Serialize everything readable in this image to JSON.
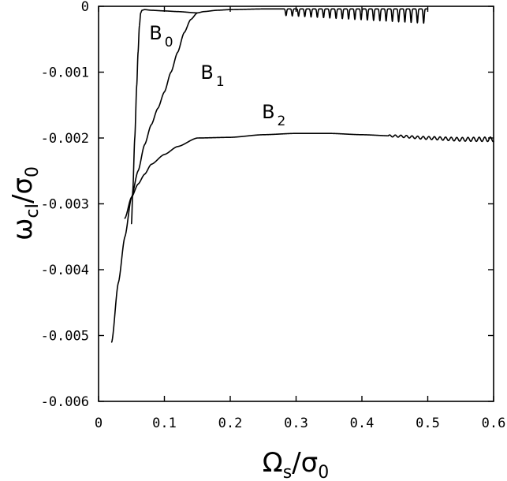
{
  "chart_data": {
    "type": "line",
    "xlabel": {
      "main": "Ω",
      "sub": "s",
      "over": "/σ",
      "over_sub": "0"
    },
    "ylabel": {
      "main": "ω",
      "sub": "cI",
      "over": "/σ",
      "over_sub": "0"
    },
    "xlim": [
      0,
      0.6
    ],
    "ylim": [
      -0.006,
      0
    ],
    "x_ticks": [
      0,
      0.1,
      0.2,
      0.3,
      0.4,
      0.5,
      0.6
    ],
    "x_tick_labels": [
      "0",
      "0.1",
      "0.2",
      "0.3",
      "0.4",
      "0.5",
      "0.6"
    ],
    "y_ticks": [
      0,
      -0.001,
      -0.002,
      -0.003,
      -0.004,
      -0.005,
      -0.006
    ],
    "y_tick_labels": [
      "0",
      "-0.001",
      "-0.002",
      "-0.003",
      "-0.004",
      "-0.005",
      "-0.006"
    ],
    "grid": false,
    "legend": "none",
    "series": [
      {
        "name": "B0",
        "color": "#000000",
        "x": [
          0.05,
          0.052,
          0.055,
          0.058,
          0.06,
          0.062,
          0.064,
          0.066,
          0.07,
          0.08,
          0.1,
          0.12,
          0.15
        ],
        "y": [
          -0.0033,
          -0.0028,
          -0.002,
          -0.0012,
          -0.0007,
          -0.0003,
          -0.0001,
          -6e-05,
          -5e-05,
          -6e-05,
          -7e-05,
          -8e-05,
          -0.0001
        ]
      },
      {
        "name": "B1",
        "color": "#000000",
        "x": [
          0.02,
          0.03,
          0.04,
          0.05,
          0.06,
          0.07,
          0.08,
          0.09,
          0.1,
          0.11,
          0.12,
          0.13,
          0.14,
          0.15,
          0.16,
          0.18,
          0.2,
          0.25,
          0.3,
          0.35,
          0.4,
          0.45,
          0.5
        ],
        "y": [
          -0.0051,
          -0.0042,
          -0.0035,
          -0.0029,
          -0.0025,
          -0.0021,
          -0.0018,
          -0.00155,
          -0.0013,
          -0.001,
          -0.0007,
          -0.0004,
          -0.0002,
          -0.0001,
          -8e-05,
          -6e-05,
          -5e-05,
          -4e-05,
          -4e-05,
          -4e-05,
          -4e-05,
          -4e-05,
          -4e-05
        ],
        "oscillation": {
          "from": 0.28,
          "to": 0.5,
          "period": 0.0095,
          "depth": 0.00022
        }
      },
      {
        "name": "B2",
        "color": "#000000",
        "x": [
          0.04,
          0.05,
          0.06,
          0.07,
          0.08,
          0.1,
          0.12,
          0.15,
          0.2,
          0.25,
          0.3,
          0.35,
          0.4,
          0.45,
          0.5,
          0.55,
          0.6
        ],
        "y": [
          -0.00322,
          -0.0029,
          -0.0027,
          -0.00255,
          -0.0024,
          -0.00225,
          -0.00213,
          -0.002,
          -0.00199,
          -0.00195,
          -0.00193,
          -0.00193,
          -0.00195,
          -0.00197,
          -0.002,
          -0.00202,
          -0.00202
        ],
        "oscillation": {
          "from": 0.44,
          "to": 0.6,
          "period": 0.0085,
          "amplitude": 3.5e-05
        }
      }
    ],
    "annotations": [
      {
        "text": "B",
        "sub": "0",
        "x": 0.077,
        "y": -0.0005
      },
      {
        "text": "B",
        "sub": "1",
        "x": 0.155,
        "y": -0.0011
      },
      {
        "text": "B",
        "sub": "2",
        "x": 0.248,
        "y": -0.0017
      }
    ]
  }
}
